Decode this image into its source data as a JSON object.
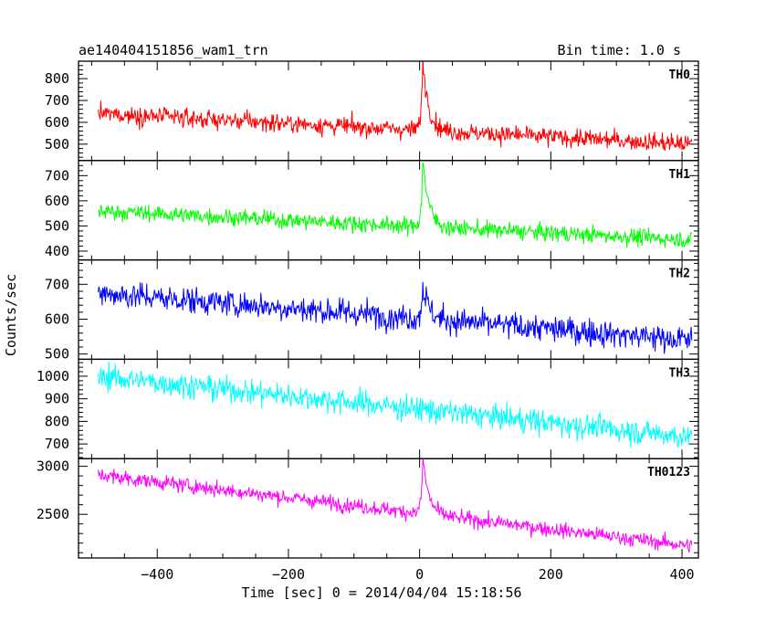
{
  "header": {
    "title": "ae140404151856_wam1_trn",
    "bin_time": "Bin time: 1.0 s"
  },
  "chart_data": {
    "type": "line",
    "title": "ae140404151856_wam1_trn",
    "subtitle": "Bin time: 1.0 s",
    "xlabel": "Time [sec] 0 = 2014/04/04 15:18:56",
    "ylabel": "Counts/sec",
    "xlim": [
      -520,
      425
    ],
    "x_ticks": [
      -400,
      -200,
      0,
      200,
      400
    ],
    "x_range_data": [
      -490,
      415
    ],
    "bin_seconds": 1.0,
    "panels": [
      {
        "name": "TH0",
        "color": "#ff0000",
        "ylim": [
          425,
          880
        ],
        "yticks": [
          500,
          600,
          700,
          800
        ],
        "baseline_start": 640,
        "baseline_end": 500,
        "noise": 38,
        "burst_peak": 880,
        "burst_time": 5
      },
      {
        "name": "TH1",
        "color": "#00ff00",
        "ylim": [
          365,
          760
        ],
        "yticks": [
          400,
          500,
          600,
          700
        ],
        "baseline_start": 560,
        "baseline_end": 445,
        "noise": 30,
        "burst_peak": 765,
        "burst_time": 5
      },
      {
        "name": "TH2",
        "color": "#0000ff",
        "ylim": [
          485,
          770
        ],
        "yticks": [
          500,
          600,
          700
        ],
        "baseline_start": 675,
        "baseline_end": 540,
        "noise": 35,
        "burst_peak": 700,
        "burst_time": 5
      },
      {
        "name": "TH3",
        "color": "#00ffff",
        "ylim": [
          635,
          1075
        ],
        "yticks": [
          700,
          800,
          900,
          1000
        ],
        "baseline_start": 1000,
        "baseline_end": 730,
        "noise": 50,
        "burst_peak": null,
        "burst_time": null
      },
      {
        "name": "TH0123",
        "color": "#ff00ff",
        "ylim": [
          2045,
          3080
        ],
        "yticks": [
          2500,
          3000
        ],
        "baseline_start": 2910,
        "baseline_end": 2170,
        "noise": 70,
        "burst_peak": 3080,
        "burst_time": 5
      }
    ]
  }
}
